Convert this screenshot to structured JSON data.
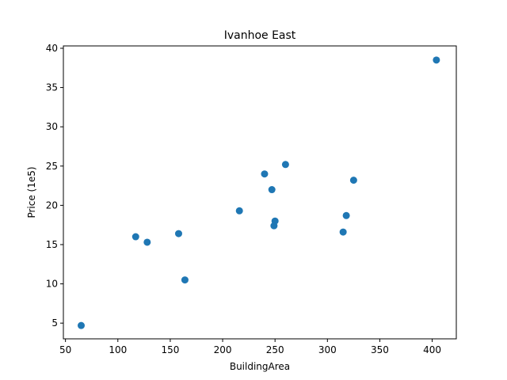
{
  "chart_data": {
    "type": "scatter",
    "title": "Ivanhoe East",
    "xlabel": "BuildingArea",
    "ylabel": "Price (1e5)",
    "xlim": [
      48,
      423
    ],
    "ylim": [
      3.0,
      40.3
    ],
    "xticks": [
      50,
      100,
      150,
      200,
      250,
      300,
      350,
      400
    ],
    "yticks": [
      5,
      10,
      15,
      20,
      25,
      30,
      35,
      40
    ],
    "grid": false,
    "marker_color": "#1f77b4",
    "points": [
      {
        "x": 65,
        "y": 4.7
      },
      {
        "x": 117,
        "y": 16.0
      },
      {
        "x": 128,
        "y": 15.3
      },
      {
        "x": 158,
        "y": 16.4
      },
      {
        "x": 164,
        "y": 10.5
      },
      {
        "x": 216,
        "y": 19.3
      },
      {
        "x": 240,
        "y": 24.0
      },
      {
        "x": 247,
        "y": 22.0
      },
      {
        "x": 249,
        "y": 17.4
      },
      {
        "x": 250,
        "y": 18.0
      },
      {
        "x": 260,
        "y": 25.2
      },
      {
        "x": 315,
        "y": 16.6
      },
      {
        "x": 318,
        "y": 18.7
      },
      {
        "x": 325,
        "y": 23.2
      },
      {
        "x": 404,
        "y": 38.5
      }
    ]
  }
}
